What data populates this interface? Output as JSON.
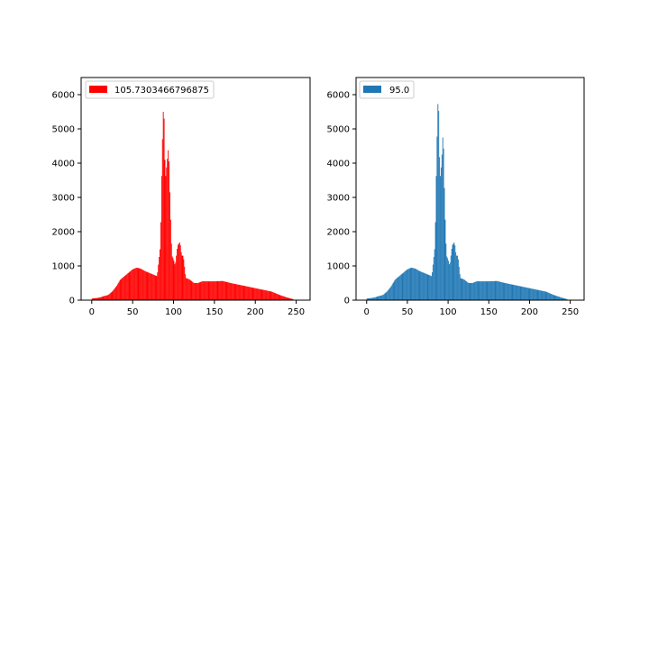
{
  "chart_data": [
    {
      "type": "bar",
      "title": "",
      "xlabel": "",
      "ylabel": "",
      "xlim": [
        -13,
        267
      ],
      "ylim": [
        0,
        6500
      ],
      "grid": false,
      "legend": {
        "placement": "top-left",
        "entries": [
          "105.7303466796875"
        ]
      },
      "color": "#ff0000",
      "xticks": [
        0,
        50,
        100,
        150,
        200,
        250
      ],
      "yticks": [
        0,
        1000,
        2000,
        3000,
        4000,
        5000,
        6000
      ],
      "xtick_labels": [
        "0",
        "50",
        "100",
        "150",
        "200",
        "250"
      ],
      "ytick_labels": [
        "0",
        "1000",
        "2000",
        "3000",
        "4000",
        "5000",
        "6000"
      ],
      "bin_width": 1,
      "bins": [
        0,
        255
      ],
      "series": [
        {
          "name": "105.7303466796875",
          "x": [
            0,
            5,
            10,
            15,
            20,
            25,
            30,
            35,
            40,
            45,
            50,
            55,
            60,
            65,
            70,
            75,
            80,
            84,
            86,
            88,
            90,
            92,
            94,
            96,
            98,
            100,
            102,
            105,
            108,
            110,
            112,
            115,
            120,
            125,
            130,
            135,
            140,
            150,
            160,
            170,
            180,
            190,
            200,
            210,
            220,
            230,
            240,
            245,
            248
          ],
          "values": [
            50,
            60,
            80,
            120,
            150,
            250,
            400,
            600,
            700,
            800,
            900,
            950,
            920,
            850,
            800,
            750,
            700,
            1600,
            4300,
            5900,
            3500,
            4000,
            4500,
            2700,
            1300,
            1200,
            1000,
            1600,
            1700,
            1300,
            1300,
            650,
            600,
            500,
            500,
            550,
            550,
            550,
            560,
            500,
            450,
            400,
            350,
            300,
            250,
            150,
            70,
            40,
            0
          ]
        }
      ]
    },
    {
      "type": "bar",
      "title": "",
      "xlabel": "",
      "ylabel": "",
      "xlim": [
        -13,
        267
      ],
      "ylim": [
        0,
        6500
      ],
      "grid": false,
      "legend": {
        "placement": "top-left",
        "entries": [
          "95.0"
        ]
      },
      "color": "#1f77b4",
      "xticks": [
        0,
        50,
        100,
        150,
        200,
        250
      ],
      "yticks": [
        0,
        1000,
        2000,
        3000,
        4000,
        5000,
        6000
      ],
      "xtick_labels": [
        "0",
        "50",
        "100",
        "150",
        "200",
        "250"
      ],
      "ytick_labels": [
        "0",
        "1000",
        "2000",
        "3000",
        "4000",
        "5000",
        "6000"
      ],
      "bin_width": 1,
      "bins": [
        0,
        255
      ],
      "series": [
        {
          "name": "95.0",
          "x": [
            0,
            5,
            10,
            15,
            20,
            25,
            30,
            35,
            40,
            45,
            50,
            55,
            60,
            65,
            70,
            75,
            80,
            84,
            86,
            88,
            90,
            92,
            94,
            96,
            98,
            100,
            102,
            105,
            108,
            110,
            112,
            115,
            120,
            125,
            130,
            135,
            140,
            150,
            160,
            170,
            180,
            190,
            200,
            210,
            220,
            230,
            240,
            245,
            248
          ],
          "values": [
            50,
            60,
            80,
            120,
            150,
            250,
            400,
            600,
            700,
            800,
            900,
            950,
            920,
            850,
            800,
            750,
            700,
            1600,
            4300,
            6200,
            3500,
            4000,
            5000,
            2700,
            1300,
            1200,
            1000,
            1600,
            1700,
            1300,
            1300,
            650,
            600,
            500,
            500,
            550,
            550,
            550,
            560,
            500,
            450,
            400,
            350,
            300,
            250,
            150,
            70,
            40,
            0
          ]
        }
      ]
    }
  ]
}
